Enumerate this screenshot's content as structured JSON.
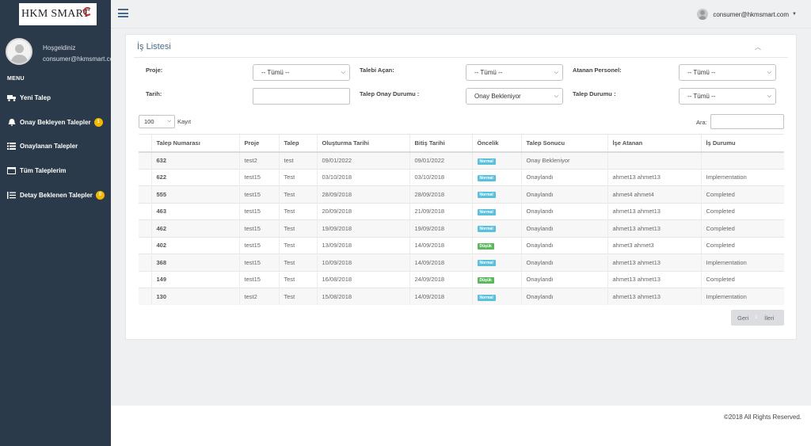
{
  "brand": {
    "logo_text": "HKM SMART"
  },
  "sidebar": {
    "welcome": "Hoşgeldiniz",
    "user_email": "consumer@hkmsmart.com",
    "menu_header": "MENU",
    "items": [
      {
        "label": "Yeni Talep",
        "icon": "truck-icon"
      },
      {
        "label": "Onay Bekleyen Talepler",
        "icon": "bell-icon",
        "badge": "1"
      },
      {
        "label": "Onaylanan Talepler",
        "icon": "list-icon"
      },
      {
        "label": "Tüm Taleplerim",
        "icon": "window-icon"
      },
      {
        "label": "Detay Beklenen Talepler",
        "icon": "list-lines-icon",
        "badge": "0"
      }
    ]
  },
  "topbar": {
    "user_email": "consumer@hkmsmart.com"
  },
  "panel": {
    "title": "İş Listesi",
    "filters": {
      "proje_label": "Proje:",
      "proje_value": "-- Tümü --",
      "talebi_acan_label": "Talebi Açan:",
      "talebi_acan_value": "-- Tümü --",
      "atanan_label": "Atanan Personel:",
      "atanan_value": "-- Tümü --",
      "tarih_label": "Tarih:",
      "onay_label": "Talep Onay Durumu :",
      "onay_value": "Onay Bekleniyor",
      "talep_durumu_label": "Talep Durumu :",
      "talep_durumu_value": "-- Tümü --"
    },
    "page_length": "100",
    "page_length_label": "Kayıt",
    "search_label": "Ara:",
    "columns": [
      "Talep Numarası",
      "Proje",
      "Talep",
      "Oluşturma Tarihi",
      "Bitiş Tarihi",
      "Öncelik",
      "Talep Sonucu",
      "İşe Atanan",
      "İş Durumu"
    ],
    "rows": [
      {
        "no": "632",
        "proje": "test2",
        "talep": "test",
        "olusturma": "09/01/2022",
        "bitis": "09/01/2022",
        "oncelik": "Normal",
        "sonuc": "Onay Bekleniyor",
        "atanan": "",
        "durum": ""
      },
      {
        "no": "622",
        "proje": "test15",
        "talep": "Test",
        "olusturma": "03/10/2018",
        "bitis": "03/10/2018",
        "oncelik": "Normal",
        "sonuc": "Onaylandı",
        "atanan": "ahmet13 ahmet13",
        "durum": "Implementation"
      },
      {
        "no": "555",
        "proje": "test15",
        "talep": "Test",
        "olusturma": "28/09/2018",
        "bitis": "28/09/2018",
        "oncelik": "Normal",
        "sonuc": "Onaylandı",
        "atanan": "ahmet4 ahmet4",
        "durum": "Completed"
      },
      {
        "no": "463",
        "proje": "test15",
        "talep": "Test",
        "olusturma": "20/09/2018",
        "bitis": "21/09/2018",
        "oncelik": "Normal",
        "sonuc": "Onaylandı",
        "atanan": "ahmet13 ahmet13",
        "durum": "Completed"
      },
      {
        "no": "462",
        "proje": "test15",
        "talep": "Test",
        "olusturma": "19/09/2018",
        "bitis": "19/09/2018",
        "oncelik": "Normal",
        "sonuc": "Onaylandı",
        "atanan": "ahmet13 ahmet13",
        "durum": "Completed"
      },
      {
        "no": "402",
        "proje": "test15",
        "talep": "Test",
        "olusturma": "13/09/2018",
        "bitis": "14/09/2018",
        "oncelik": "Düşük",
        "sonuc": "Onaylandı",
        "atanan": "ahmet3 ahmet3",
        "durum": "Completed"
      },
      {
        "no": "368",
        "proje": "test15",
        "talep": "Test",
        "olusturma": "10/09/2018",
        "bitis": "14/09/2018",
        "oncelik": "Normal",
        "sonuc": "Onaylandı",
        "atanan": "ahmet13 ahmet13",
        "durum": "Implementation"
      },
      {
        "no": "149",
        "proje": "test15",
        "talep": "Test",
        "olusturma": "16/08/2018",
        "bitis": "24/09/2018",
        "oncelik": "Düşük",
        "sonuc": "Onaylandı",
        "atanan": "ahmet13 ahmet13",
        "durum": "Completed"
      },
      {
        "no": "130",
        "proje": "test2",
        "talep": "Test",
        "olusturma": "15/08/2018",
        "bitis": "14/09/2018",
        "oncelik": "Normal",
        "sonuc": "Onaylandı",
        "atanan": "ahmet13 ahmet13",
        "durum": "Implementation"
      }
    ],
    "pager": {
      "prev": "Geri",
      "current": "1",
      "next": "İleri"
    }
  },
  "colors": {
    "sidebar": "#2b3a4a",
    "priority_normal": "#5bc0de",
    "priority_low": "#5cb85c",
    "badge": "#f5b800"
  },
  "footer": {
    "text": "©2018 All Rights Reserved."
  }
}
